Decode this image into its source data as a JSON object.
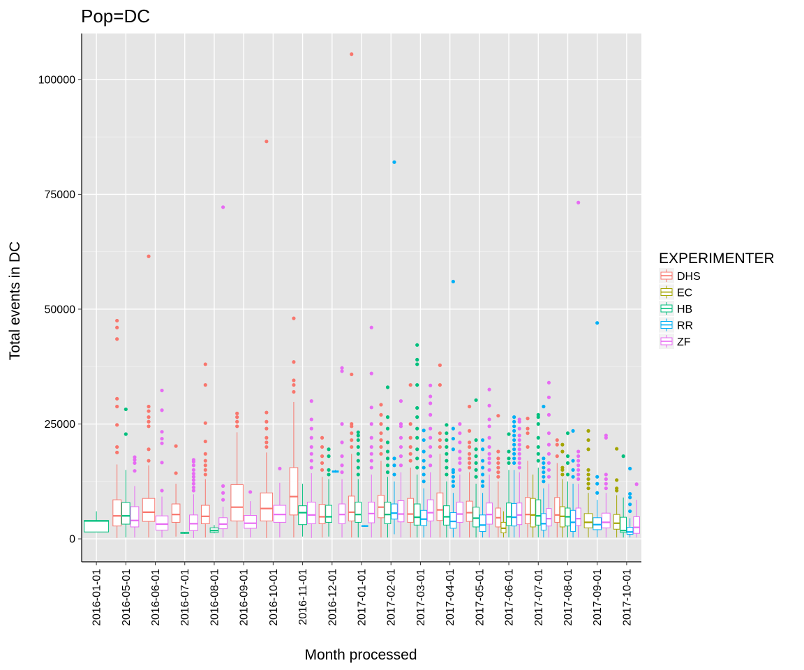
{
  "chart_data": {
    "type": "boxplot",
    "title": "Pop=DC",
    "xlabel": "Month processed",
    "ylabel": "Total events in DC",
    "ylim": [
      -5000,
      110000
    ],
    "yticks": [
      0,
      25000,
      50000,
      75000,
      100000
    ],
    "ytick_labels": [
      "0",
      "25000",
      "50000",
      "75000",
      "100000"
    ],
    "grid": true,
    "legend": {
      "title": "EXPERIMENTER",
      "position": "right"
    },
    "categories": [
      "2016-01-01",
      "2016-05-01",
      "2016-06-01",
      "2016-07-01",
      "2016-08-01",
      "2016-09-01",
      "2016-10-01",
      "2016-11-01",
      "2016-12-01",
      "2017-01-01",
      "2017-02-01",
      "2017-03-01",
      "2017-04-01",
      "2017-05-01",
      "2017-06-01",
      "2017-07-01",
      "2017-08-01",
      "2017-09-01",
      "2017-10-01"
    ],
    "series": [
      {
        "name": "DHS",
        "color": "#F8766D"
      },
      {
        "name": "EC",
        "color": "#A3A500"
      },
      {
        "name": "HB",
        "color": "#00BF7D"
      },
      {
        "name": "RR",
        "color": "#00B0F6"
      },
      {
        "name": "ZF",
        "color": "#E76BF3"
      }
    ],
    "boxes": [
      {
        "cat": "2016-01-01",
        "s": "HB",
        "q1": 1500,
        "med": 3900,
        "q3": 4000,
        "lo": 1500,
        "hi": 6000,
        "out": []
      },
      {
        "cat": "2016-05-01",
        "s": "DHS",
        "q1": 2800,
        "med": 5000,
        "q3": 8500,
        "lo": 200,
        "hi": 16200,
        "out": [
          18800,
          20000,
          24800,
          28800,
          30500,
          43500,
          46000,
          47500
        ]
      },
      {
        "cat": "2016-05-01",
        "s": "HB",
        "q1": 3200,
        "med": 5000,
        "q3": 7900,
        "lo": 300,
        "hi": 15000,
        "out": [
          22800,
          28200
        ]
      },
      {
        "cat": "2016-05-01",
        "s": "ZF",
        "q1": 2600,
        "med": 4000,
        "q3": 7000,
        "lo": 300,
        "hi": 11500,
        "out": [
          14800,
          16500,
          17200,
          17800
        ]
      },
      {
        "cat": "2016-06-01",
        "s": "DHS",
        "q1": 3800,
        "med": 5800,
        "q3": 8800,
        "lo": 300,
        "hi": 16000,
        "out": [
          17000,
          19500,
          24500,
          25500,
          26500,
          27800,
          28800,
          61500
        ]
      },
      {
        "cat": "2016-06-01",
        "s": "ZF",
        "q1": 1900,
        "med": 3200,
        "q3": 5000,
        "lo": 300,
        "hi": 9200,
        "out": [
          10500,
          16600,
          20800,
          21800,
          23300,
          28000,
          32300
        ]
      },
      {
        "cat": "2016-07-01",
        "s": "DHS",
        "q1": 3600,
        "med": 5300,
        "q3": 7600,
        "lo": 500,
        "hi": 12000,
        "out": [
          14300,
          20200
        ]
      },
      {
        "cat": "2016-07-01",
        "s": "HB",
        "q1": 1200,
        "med": 1300,
        "q3": 1400,
        "lo": 1100,
        "hi": 1500,
        "out": []
      },
      {
        "cat": "2016-07-01",
        "s": "ZF",
        "q1": 1800,
        "med": 3300,
        "q3": 5200,
        "lo": 200,
        "hi": 9700,
        "out": [
          10500,
          11200,
          12000,
          12800,
          13500,
          14200,
          15000,
          16000,
          16800,
          17200
        ]
      },
      {
        "cat": "2016-08-01",
        "s": "DHS",
        "q1": 3300,
        "med": 4900,
        "q3": 7300,
        "lo": 300,
        "hi": 13000,
        "out": [
          14000,
          15000,
          16000,
          17000,
          18500,
          21200,
          25200,
          33500,
          38000
        ]
      },
      {
        "cat": "2016-08-01",
        "s": "HB",
        "q1": 1400,
        "med": 1800,
        "q3": 2400,
        "lo": 1200,
        "hi": 3000,
        "out": []
      },
      {
        "cat": "2016-08-01",
        "s": "ZF",
        "q1": 2200,
        "med": 3200,
        "q3": 4600,
        "lo": 300,
        "hi": 7000,
        "out": [
          8500,
          10000,
          11500,
          72200
        ]
      },
      {
        "cat": "2016-09-01",
        "s": "DHS",
        "q1": 3900,
        "med": 6900,
        "q3": 11800,
        "lo": 200,
        "hi": 23200,
        "out": [
          24500,
          25500,
          26500,
          27300
        ]
      },
      {
        "cat": "2016-09-01",
        "s": "ZF",
        "q1": 2300,
        "med": 3400,
        "q3": 5100,
        "lo": 300,
        "hi": 8200,
        "out": [
          10200
        ]
      },
      {
        "cat": "2016-10-01",
        "s": "DHS",
        "q1": 3900,
        "med": 6600,
        "q3": 10000,
        "lo": 200,
        "hi": 18800,
        "out": [
          20000,
          21000,
          22000,
          24000,
          25500,
          27500,
          86500
        ]
      },
      {
        "cat": "2016-10-01",
        "s": "ZF",
        "q1": 3600,
        "med": 5300,
        "q3": 7300,
        "lo": 300,
        "hi": 12200,
        "out": [
          15300
        ]
      },
      {
        "cat": "2016-11-01",
        "s": "DHS",
        "q1": 5200,
        "med": 9200,
        "q3": 15500,
        "lo": 300,
        "hi": 29800,
        "out": [
          32000,
          33500,
          34500,
          38500,
          48000
        ]
      },
      {
        "cat": "2016-11-01",
        "s": "HB",
        "q1": 3100,
        "med": 5700,
        "q3": 7200,
        "lo": 500,
        "hi": 12000,
        "out": []
      },
      {
        "cat": "2016-11-01",
        "s": "ZF",
        "q1": 3300,
        "med": 5200,
        "q3": 8000,
        "lo": 200,
        "hi": 14300,
        "out": [
          15500,
          17000,
          18500,
          20000,
          22000,
          24000,
          26000,
          30000
        ]
      },
      {
        "cat": "2016-12-01",
        "s": "DHS",
        "q1": 3300,
        "med": 4800,
        "q3": 7500,
        "lo": 300,
        "hi": 13500,
        "out": [
          15000,
          16500,
          18000,
          20000,
          22000
        ]
      },
      {
        "cat": "2016-12-01",
        "s": "HB",
        "q1": 3600,
        "med": 4800,
        "q3": 7300,
        "lo": 500,
        "hi": 13000,
        "out": [
          14000,
          15000,
          18000,
          19500
        ]
      },
      {
        "cat": "2016-12-01",
        "s": "RR",
        "q1": 14500,
        "med": 14600,
        "q3": 14800,
        "lo": 14400,
        "hi": 15000,
        "out": []
      },
      {
        "cat": "2016-12-01",
        "s": "ZF",
        "q1": 3300,
        "med": 5300,
        "q3": 7600,
        "lo": 300,
        "hi": 13000,
        "out": [
          14500,
          16000,
          18000,
          21000,
          25000,
          36500,
          37200
        ]
      },
      {
        "cat": "2017-01-01",
        "s": "DHS",
        "q1": 3900,
        "med": 5800,
        "q3": 9300,
        "lo": 300,
        "hi": 18500,
        "out": [
          20000,
          21500,
          23000,
          24500,
          25000,
          35800,
          105500
        ]
      },
      {
        "cat": "2017-01-01",
        "s": "HB",
        "q1": 3600,
        "med": 5300,
        "q3": 8000,
        "lo": 300,
        "hi": 13000,
        "out": [
          14000,
          15500,
          17000,
          18500,
          20000,
          21500,
          22500,
          23200
        ]
      },
      {
        "cat": "2017-01-01",
        "s": "RR",
        "q1": 2700,
        "med": 2800,
        "q3": 2900,
        "lo": 2600,
        "hi": 3000,
        "out": []
      },
      {
        "cat": "2017-01-01",
        "s": "ZF",
        "q1": 3500,
        "med": 5500,
        "q3": 8000,
        "lo": 300,
        "hi": 14000,
        "out": [
          15500,
          17000,
          18500,
          20000,
          22000,
          25000,
          28600,
          36000,
          46000
        ]
      },
      {
        "cat": "2017-02-01",
        "s": "DHS",
        "q1": 4600,
        "med": 6900,
        "q3": 9500,
        "lo": 300,
        "hi": 17000,
        "out": [
          18500,
          20000,
          21500,
          23000,
          25000,
          27000,
          29200
        ]
      },
      {
        "cat": "2017-02-01",
        "s": "HB",
        "q1": 3300,
        "med": 5300,
        "q3": 8000,
        "lo": 300,
        "hi": 13500,
        "out": [
          14500,
          16000,
          17500,
          19000,
          21000,
          24000,
          26500,
          33000
        ]
      },
      {
        "cat": "2017-02-01",
        "s": "RR",
        "q1": 4300,
        "med": 5600,
        "q3": 7600,
        "lo": 1000,
        "hi": 12500,
        "out": [
          14000,
          16000,
          17500,
          82000
        ]
      },
      {
        "cat": "2017-02-01",
        "s": "ZF",
        "q1": 3700,
        "med": 5400,
        "q3": 8300,
        "lo": 300,
        "hi": 14500,
        "out": [
          16000,
          18000,
          20000,
          22000,
          24500,
          25000,
          30000
        ]
      },
      {
        "cat": "2017-03-01",
        "s": "DHS",
        "q1": 3600,
        "med": 5400,
        "q3": 8800,
        "lo": 300,
        "hi": 15500,
        "out": [
          17000,
          18500,
          20000,
          22000,
          25000,
          33500
        ]
      },
      {
        "cat": "2017-03-01",
        "s": "HB",
        "q1": 3000,
        "med": 4700,
        "q3": 7600,
        "lo": 300,
        "hi": 14000,
        "out": [
          15500,
          17500,
          19500,
          22000,
          24000,
          26500,
          28500,
          33500,
          38000,
          39000,
          42200
        ]
      },
      {
        "cat": "2017-03-01",
        "s": "RR",
        "q1": 2900,
        "med": 4300,
        "q3": 6200,
        "lo": 300,
        "hi": 11000,
        "out": [
          12500,
          14000,
          15500,
          17000,
          19000,
          21500,
          23600
        ]
      },
      {
        "cat": "2017-03-01",
        "s": "ZF",
        "q1": 3900,
        "med": 5700,
        "q3": 8500,
        "lo": 300,
        "hi": 14500,
        "out": [
          16000,
          18000,
          20000,
          22000,
          24000,
          27000,
          29500,
          31000,
          33400
        ]
      },
      {
        "cat": "2017-04-01",
        "s": "DHS",
        "q1": 4000,
        "med": 6300,
        "q3": 10000,
        "lo": 300,
        "hi": 18500,
        "out": [
          20000,
          21500,
          23000,
          33500,
          37800
        ]
      },
      {
        "cat": "2017-04-01",
        "s": "HB",
        "q1": 3000,
        "med": 4800,
        "q3": 7200,
        "lo": 300,
        "hi": 12500,
        "out": [
          14000,
          15500,
          17000,
          18500,
          20000,
          21500,
          23000,
          24800
        ]
      },
      {
        "cat": "2017-04-01",
        "s": "RR",
        "q1": 2300,
        "med": 3800,
        "q3": 5700,
        "lo": 300,
        "hi": 10000,
        "out": [
          11500,
          12500,
          13500,
          14500,
          15000,
          19500,
          21800,
          24000,
          56000
        ]
      },
      {
        "cat": "2017-04-01",
        "s": "ZF",
        "q1": 3600,
        "med": 5400,
        "q3": 8000,
        "lo": 300,
        "hi": 14000,
        "out": [
          15000,
          16500,
          17500,
          19000,
          21000,
          23000,
          25000
        ]
      },
      {
        "cat": "2017-05-01",
        "s": "DHS",
        "q1": 3800,
        "med": 5700,
        "q3": 8200,
        "lo": 300,
        "hi": 14500,
        "out": [
          15500,
          16500,
          17500,
          18500,
          20000,
          21000,
          23500,
          28800
        ]
      },
      {
        "cat": "2017-05-01",
        "s": "HB",
        "q1": 2600,
        "med": 4500,
        "q3": 6900,
        "lo": 300,
        "hi": 12000,
        "out": [
          13500,
          15000,
          16500,
          18000,
          19500,
          21500,
          30200
        ]
      },
      {
        "cat": "2017-05-01",
        "s": "RR",
        "q1": 1600,
        "med": 3000,
        "q3": 5200,
        "lo": 300,
        "hi": 10000,
        "out": [
          11500,
          12500,
          14000,
          15500,
          17000,
          19500,
          21500
        ]
      },
      {
        "cat": "2017-05-01",
        "s": "ZF",
        "q1": 3200,
        "med": 5300,
        "q3": 7800,
        "lo": 300,
        "hi": 14000,
        "out": [
          15000,
          16500,
          17500,
          18500,
          20000,
          22000,
          24500,
          26000,
          29000,
          32500
        ]
      },
      {
        "cat": "2017-06-01",
        "s": "DHS",
        "q1": 2600,
        "med": 4600,
        "q3": 6700,
        "lo": 300,
        "hi": 12500,
        "out": [
          13500,
          14500,
          15500,
          16500,
          17500,
          19000,
          26800
        ]
      },
      {
        "cat": "2017-06-01",
        "s": "EC",
        "q1": 1300,
        "med": 2300,
        "q3": 3600,
        "lo": 300,
        "hi": 6000,
        "out": []
      },
      {
        "cat": "2017-06-01",
        "s": "HB",
        "q1": 2900,
        "med": 4800,
        "q3": 7800,
        "lo": 300,
        "hi": 15000,
        "out": [
          16500,
          17500,
          19000,
          22800
        ]
      },
      {
        "cat": "2017-06-01",
        "s": "RR",
        "q1": 2800,
        "med": 4700,
        "q3": 7700,
        "lo": 300,
        "hi": 15000,
        "out": [
          16500,
          17500,
          18500,
          19500,
          20500,
          21500,
          22500,
          23500,
          24500,
          25500,
          26500
        ]
      },
      {
        "cat": "2017-06-01",
        "s": "ZF",
        "q1": 3100,
        "med": 5200,
        "q3": 7800,
        "lo": 300,
        "hi": 14500,
        "out": [
          15500,
          16500,
          17500,
          18500,
          19500,
          20500,
          21500,
          22500,
          24000,
          25500,
          26000
        ]
      },
      {
        "cat": "2017-07-01",
        "s": "DHS",
        "q1": 3300,
        "med": 5300,
        "q3": 9000,
        "lo": 300,
        "hi": 17000,
        "out": [
          20000,
          23000,
          24000,
          26200
        ]
      },
      {
        "cat": "2017-07-01",
        "s": "EC",
        "q1": 2600,
        "med": 5200,
        "q3": 8800,
        "lo": 300,
        "hi": 14000,
        "out": []
      },
      {
        "cat": "2017-07-01",
        "s": "HB",
        "q1": 3000,
        "med": 5000,
        "q3": 8500,
        "lo": 300,
        "hi": 15500,
        "out": [
          17000,
          18500,
          20000,
          22000,
          25000,
          26500,
          27000
        ]
      },
      {
        "cat": "2017-07-01",
        "s": "RR",
        "q1": 1900,
        "med": 3300,
        "q3": 5500,
        "lo": 300,
        "hi": 11000,
        "out": [
          12500,
          13500,
          14500,
          15500,
          16500,
          17500,
          28800
        ]
      },
      {
        "cat": "2017-07-01",
        "s": "ZF",
        "q1": 2800,
        "med": 4400,
        "q3": 6600,
        "lo": 300,
        "hi": 12000,
        "out": [
          13500,
          15000,
          16500,
          18500,
          20500,
          23000,
          27000,
          30800,
          34000
        ]
      },
      {
        "cat": "2017-08-01",
        "s": "DHS",
        "q1": 3600,
        "med": 5200,
        "q3": 9000,
        "lo": 300,
        "hi": 16500,
        "out": [
          18000,
          20500,
          21500
        ]
      },
      {
        "cat": "2017-08-01",
        "s": "EC",
        "q1": 2600,
        "med": 4900,
        "q3": 7000,
        "lo": 300,
        "hi": 13000,
        "out": [
          14000,
          15000,
          15500,
          19000,
          20500
        ]
      },
      {
        "cat": "2017-08-01",
        "s": "HB",
        "q1": 2800,
        "med": 4800,
        "q3": 6700,
        "lo": 300,
        "hi": 12500,
        "out": [
          14000,
          16500,
          18000,
          23000
        ]
      },
      {
        "cat": "2017-08-01",
        "s": "RR",
        "q1": 1600,
        "med": 3600,
        "q3": 6200,
        "lo": 300,
        "hi": 12000,
        "out": [
          13500,
          15000,
          17000,
          23500
        ]
      },
      {
        "cat": "2017-08-01",
        "s": "ZF",
        "q1": 2900,
        "med": 4400,
        "q3": 6700,
        "lo": 300,
        "hi": 12000,
        "out": [
          13000,
          14000,
          15000,
          16000,
          17000,
          18000,
          19000,
          73200
        ]
      },
      {
        "cat": "2017-09-01",
        "s": "EC",
        "q1": 2400,
        "med": 3600,
        "q3": 5500,
        "lo": 300,
        "hi": 10000,
        "out": [
          11000,
          12000,
          13000,
          14000,
          15000,
          19500,
          21500,
          23500
        ]
      },
      {
        "cat": "2017-09-01",
        "s": "RR",
        "q1": 2000,
        "med": 3100,
        "q3": 4600,
        "lo": 300,
        "hi": 8500,
        "out": [
          10000,
          12000,
          13500,
          47000
        ]
      },
      {
        "cat": "2017-09-01",
        "s": "ZF",
        "q1": 2400,
        "med": 3600,
        "q3": 5600,
        "lo": 300,
        "hi": 10000,
        "out": [
          11000,
          12000,
          13000,
          14000,
          22000,
          22500
        ]
      },
      {
        "cat": "2017-10-01",
        "s": "EC",
        "q1": 2100,
        "med": 3400,
        "q3": 5300,
        "lo": 300,
        "hi": 9500,
        "out": [
          10500,
          11000,
          12800,
          19600
        ]
      },
      {
        "cat": "2017-10-01",
        "s": "HB",
        "q1": 1400,
        "med": 1800,
        "q3": 4700,
        "lo": 300,
        "hi": 9000,
        "out": [
          18000
        ]
      },
      {
        "cat": "2017-10-01",
        "s": "RR",
        "q1": 1000,
        "med": 1500,
        "q3": 2500,
        "lo": 300,
        "hi": 4500,
        "out": [
          6000,
          7500,
          9000,
          9800,
          15300
        ]
      },
      {
        "cat": "2017-10-01",
        "s": "ZF",
        "q1": 1200,
        "med": 2500,
        "q3": 4800,
        "lo": 300,
        "hi": 8500,
        "out": [
          11900
        ]
      }
    ]
  }
}
